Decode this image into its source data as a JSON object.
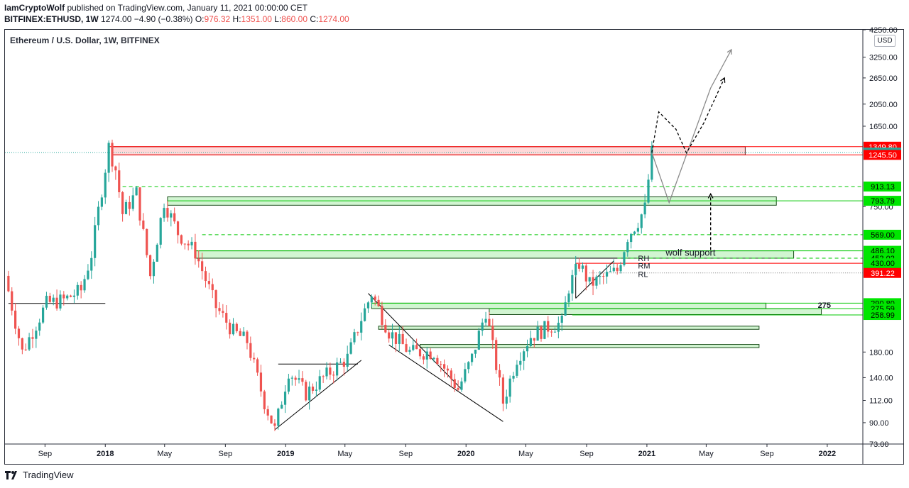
{
  "header": {
    "author": "IamCryptoWolf",
    "published_text": " published on TradingView.com, January 11, 2021 00:00:00 CET",
    "symbol": "BITFINEX:ETHUSD, 1W",
    "last": "1274.00",
    "change": "−4.90 (−0.38%)",
    "o_label": "O:",
    "o": "976.32",
    "h_label": "H:",
    "h": "1351.00",
    "l_label": "L:",
    "l": "860.00",
    "c_label": "C:",
    "c": "1274.00"
  },
  "legend_title": "Ethereum / U.S. Dollar, 1W, BITFINEX",
  "currency": "USD",
  "footer": {
    "brand": "TradingView"
  },
  "colors": {
    "up": "#26a69a",
    "down": "#ef5350",
    "green_zone": "#00c800",
    "red_zone": "#ff0000",
    "text": "#131722"
  },
  "chart_data": {
    "type": "candlestick",
    "title": "Ethereum / U.S. Dollar, 1W, BITFINEX",
    "y_scale": "log",
    "ylim": [
      73,
      4250
    ],
    "y_ticks": [
      4250,
      3250,
      2650,
      2050,
      1650,
      750,
      180,
      140,
      112,
      90,
      73
    ],
    "y_tick_labels": [
      "4250.00",
      "3250.00",
      "2650.00",
      "2050.00",
      "1650.00",
      "750.00",
      "180.00",
      "140.00",
      "112.00",
      "90.00",
      "73.00"
    ],
    "x_range": [
      "2017-06-12",
      "2022-03-14"
    ],
    "x_ticks": [
      {
        "date": "2017-09-01",
        "label": "Sep"
      },
      {
        "date": "2018-01-01",
        "label": "2018"
      },
      {
        "date": "2018-05-01",
        "label": "May"
      },
      {
        "date": "2018-09-01",
        "label": "Sep"
      },
      {
        "date": "2019-01-01",
        "label": "2019"
      },
      {
        "date": "2019-05-01",
        "label": "May"
      },
      {
        "date": "2019-09-01",
        "label": "Sep"
      },
      {
        "date": "2020-01-01",
        "label": "2020"
      },
      {
        "date": "2020-05-01",
        "label": "May"
      },
      {
        "date": "2020-09-01",
        "label": "Sep"
      },
      {
        "date": "2021-01-01",
        "label": "2021"
      },
      {
        "date": "2021-05-01",
        "label": "May"
      },
      {
        "date": "2021-09-01",
        "label": "Sep"
      },
      {
        "date": "2022-01-01",
        "label": "2022"
      }
    ],
    "price_levels": [
      {
        "label": "1349.80",
        "color": "#ff0000",
        "fill": "#ff0000",
        "text_color": "#ffffff"
      },
      {
        "label": "1274.00",
        "color": "#26a69a",
        "fill": "#26a69a",
        "text_color": "#ffffff"
      },
      {
        "label": "1245.50",
        "color": "#ff0000",
        "fill": "#ff0000",
        "text_color": "#ffffff"
      },
      {
        "label": "913.13",
        "color": "#00c800",
        "fill": "#00e600",
        "text_color": "#000000"
      },
      {
        "label": "793.79",
        "color": "#00c800",
        "fill": "#00e600",
        "text_color": "#000000"
      },
      {
        "label": "569.00",
        "color": "#00c800",
        "fill": "#00e600",
        "text_color": "#000000"
      },
      {
        "label": "486.10",
        "color": "#00c800",
        "fill": "#00e600",
        "text_color": "#000000"
      },
      {
        "label": "452.02",
        "color": "#00c800",
        "fill": "#00e600",
        "text_color": "#000000"
      },
      {
        "label": "430.00",
        "color": "#00c800",
        "fill": "#00e600",
        "text_color": "#000000"
      },
      {
        "label": "391.22",
        "color": "#ff0000",
        "fill": "#ff0000",
        "text_color": "#ffffff"
      },
      {
        "label": "290.80",
        "color": "#00c800",
        "fill": "#00e600",
        "text_color": "#000000"
      },
      {
        "label": "275.59",
        "color": "#00c800",
        "fill": "#00e600",
        "text_color": "#000000"
      },
      {
        "label": "258.99",
        "color": "#00c800",
        "fill": "#00e600",
        "text_color": "#000000"
      }
    ],
    "zones": [
      {
        "kind": "resistance",
        "from": "2018-01-15",
        "to": "2021-07-19",
        "low": 1245.5,
        "high": 1349.8
      },
      {
        "kind": "support",
        "from": "2018-05-07",
        "to": "2021-09-20",
        "low": 760,
        "high": 825
      },
      {
        "kind": "support",
        "from": "2018-07-02",
        "to": "2021-10-25",
        "low": 452.02,
        "high": 486.1
      },
      {
        "kind": "support",
        "from": "2019-06-24",
        "to": "2021-08-30",
        "low": 275.59,
        "high": 290.8
      },
      {
        "kind": "support",
        "from": "2020-02-17",
        "to": "2021-12-20",
        "low": 260,
        "high": 275.59
      },
      {
        "kind": "support",
        "from": "2019-07-08",
        "to": "2021-08-16",
        "low": 225,
        "high": 232
      },
      {
        "kind": "support",
        "from": "2019-09-30",
        "to": "2021-08-16",
        "low": 188,
        "high": 194
      }
    ],
    "annotations": [
      {
        "text": "wolf support"
      },
      {
        "text": "RH"
      },
      {
        "text": "RM"
      },
      {
        "text": "RL"
      },
      {
        "text": "275"
      }
    ],
    "price_points": [
      {
        "date": "2017-06-12",
        "price": 380
      },
      {
        "date": "2017-07-17",
        "price": 180
      },
      {
        "date": "2017-09-04",
        "price": 290
      },
      {
        "date": "2017-10-09",
        "price": 300
      },
      {
        "date": "2017-11-13",
        "price": 330
      },
      {
        "date": "2017-12-04",
        "price": 470
      },
      {
        "date": "2017-12-18",
        "price": 720
      },
      {
        "date": "2018-01-08",
        "price": 1350
      },
      {
        "date": "2018-01-22",
        "price": 1080
      },
      {
        "date": "2018-02-05",
        "price": 700
      },
      {
        "date": "2018-03-05",
        "price": 860
      },
      {
        "date": "2018-04-02",
        "price": 380
      },
      {
        "date": "2018-04-30",
        "price": 790
      },
      {
        "date": "2018-05-28",
        "price": 580
      },
      {
        "date": "2018-07-02",
        "price": 480
      },
      {
        "date": "2018-08-13",
        "price": 280
      },
      {
        "date": "2018-09-17",
        "price": 220
      },
      {
        "date": "2018-10-15",
        "price": 200
      },
      {
        "date": "2018-11-19",
        "price": 110
      },
      {
        "date": "2018-12-10",
        "price": 84
      },
      {
        "date": "2019-01-07",
        "price": 150
      },
      {
        "date": "2019-02-11",
        "price": 120
      },
      {
        "date": "2019-03-18",
        "price": 140
      },
      {
        "date": "2019-05-06",
        "price": 170
      },
      {
        "date": "2019-06-03",
        "price": 250
      },
      {
        "date": "2019-06-24",
        "price": 320
      },
      {
        "date": "2019-07-29",
        "price": 220
      },
      {
        "date": "2019-09-09",
        "price": 180
      },
      {
        "date": "2019-10-28",
        "price": 180
      },
      {
        "date": "2019-12-16",
        "price": 125
      },
      {
        "date": "2020-01-13",
        "price": 170
      },
      {
        "date": "2020-02-10",
        "price": 270
      },
      {
        "date": "2020-03-16",
        "price": 110
      },
      {
        "date": "2020-04-13",
        "price": 170
      },
      {
        "date": "2020-05-11",
        "price": 210
      },
      {
        "date": "2020-06-15",
        "price": 230
      },
      {
        "date": "2020-07-13",
        "price": 240
      },
      {
        "date": "2020-07-27",
        "price": 340
      },
      {
        "date": "2020-08-17",
        "price": 430
      },
      {
        "date": "2020-09-07",
        "price": 350
      },
      {
        "date": "2020-10-12",
        "price": 380
      },
      {
        "date": "2020-11-02",
        "price": 400
      },
      {
        "date": "2020-11-23",
        "price": 560
      },
      {
        "date": "2020-12-14",
        "price": 650
      },
      {
        "date": "2020-12-28",
        "price": 740
      },
      {
        "date": "2021-01-04",
        "price": 976.32
      },
      {
        "date": "2021-01-11",
        "price": 1274
      }
    ],
    "projection_paths": [
      {
        "style": "solid",
        "points": [
          [
            "2021-01-11",
            1274
          ],
          [
            "2021-02-15",
            780
          ],
          [
            "2021-05-10",
            2400
          ],
          [
            "2021-06-21",
            3500
          ]
        ]
      },
      {
        "style": "dashed",
        "points": [
          [
            "2021-01-11",
            1274
          ],
          [
            "2021-01-25",
            1900
          ],
          [
            "2021-03-01",
            1600
          ],
          [
            "2021-03-22",
            1270
          ],
          [
            "2021-04-26",
            1700
          ],
          [
            "2021-06-07",
            2650
          ]
        ]
      },
      {
        "style": "dashed",
        "points": [
          [
            "2021-05-10",
            490
          ],
          [
            "2021-05-10",
            850
          ]
        ]
      }
    ]
  }
}
